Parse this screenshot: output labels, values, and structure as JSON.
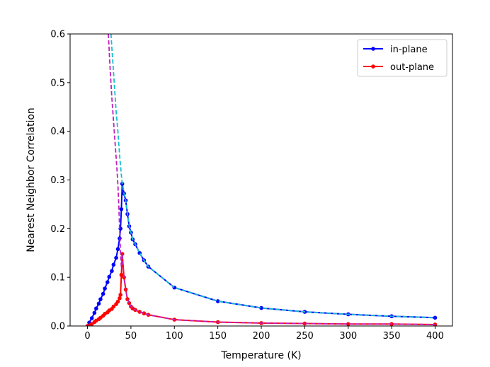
{
  "chart_data": {
    "type": "line",
    "xlabel": "Temperature (K)",
    "ylabel": "Nearest Neighbor Correlation",
    "xlim": [
      -20,
      420
    ],
    "ylim": [
      0,
      0.6
    ],
    "xticks": [
      0,
      50,
      100,
      150,
      200,
      250,
      300,
      350,
      400
    ],
    "yticks": [
      0.0,
      0.1,
      0.2,
      0.3,
      0.4,
      0.5,
      0.6
    ],
    "xtick_labels": [
      "0",
      "50",
      "100",
      "150",
      "200",
      "250",
      "300",
      "350",
      "400"
    ],
    "ytick_labels": [
      "0.0",
      "0.1",
      "0.2",
      "0.3",
      "0.4",
      "0.5",
      "0.6"
    ],
    "legend_position": "top-right",
    "grid": false,
    "series": [
      {
        "name": "in-plane",
        "color": "#0000ff",
        "marker": "circle",
        "line_style": "solid",
        "x": [
          0,
          2,
          5,
          8,
          10,
          13,
          15,
          18,
          20,
          23,
          25,
          28,
          30,
          33,
          35,
          37,
          38,
          39,
          40,
          42,
          44,
          46,
          48,
          50,
          52,
          55,
          60,
          65,
          70,
          100,
          150,
          200,
          250,
          300,
          350,
          400
        ],
        "y": [
          0.0,
          0.007,
          0.016,
          0.027,
          0.036,
          0.046,
          0.055,
          0.066,
          0.077,
          0.09,
          0.101,
          0.113,
          0.126,
          0.14,
          0.158,
          0.18,
          0.2,
          0.24,
          0.292,
          0.272,
          0.258,
          0.23,
          0.205,
          0.192,
          0.178,
          0.168,
          0.15,
          0.135,
          0.122,
          0.079,
          0.051,
          0.037,
          0.029,
          0.024,
          0.02,
          0.017
        ]
      },
      {
        "name": "out-plane",
        "color": "#ff0000",
        "marker": "circle",
        "line_style": "solid",
        "x": [
          0,
          3,
          5,
          8,
          10,
          13,
          15,
          18,
          20,
          23,
          25,
          28,
          30,
          33,
          35,
          37,
          38,
          39,
          40,
          42,
          44,
          46,
          48,
          50,
          52,
          55,
          60,
          65,
          70,
          100,
          150,
          200,
          250,
          300,
          350,
          400
        ],
        "y": [
          0.0,
          0.002,
          0.004,
          0.008,
          0.011,
          0.014,
          0.017,
          0.021,
          0.025,
          0.028,
          0.032,
          0.035,
          0.04,
          0.045,
          0.05,
          0.057,
          0.064,
          0.105,
          0.148,
          0.1,
          0.075,
          0.055,
          0.047,
          0.04,
          0.036,
          0.033,
          0.029,
          0.026,
          0.023,
          0.013,
          0.008,
          0.006,
          0.005,
          0.004,
          0.004,
          0.003
        ]
      },
      {
        "color": "#17becf",
        "marker": "none",
        "line_style": "dashed",
        "x": [
          27,
          30,
          33,
          35,
          37,
          38,
          39,
          40,
          42,
          44,
          46,
          48,
          50,
          52,
          55,
          60,
          65,
          70,
          100,
          150,
          200,
          250,
          300,
          350,
          400
        ],
        "y": [
          0.6,
          0.52,
          0.44,
          0.4,
          0.35,
          0.33,
          0.31,
          0.292,
          0.272,
          0.258,
          0.23,
          0.205,
          0.192,
          0.178,
          0.168,
          0.15,
          0.135,
          0.122,
          0.079,
          0.051,
          0.037,
          0.029,
          0.024,
          0.02,
          0.017
        ]
      },
      {
        "color": "#c020c0",
        "marker": "none",
        "line_style": "dashed",
        "x": [
          24,
          26,
          28,
          30,
          32,
          34,
          35,
          36,
          37,
          38,
          39,
          40,
          42,
          44,
          46,
          48,
          50,
          55,
          60,
          65,
          70,
          100,
          150,
          200,
          250,
          300,
          350,
          400
        ],
        "y": [
          0.6,
          0.53,
          0.47,
          0.42,
          0.37,
          0.32,
          0.29,
          0.25,
          0.2,
          0.15,
          0.12,
          0.148,
          0.1,
          0.075,
          0.055,
          0.047,
          0.04,
          0.033,
          0.029,
          0.026,
          0.023,
          0.013,
          0.008,
          0.006,
          0.005,
          0.004,
          0.004,
          0.003
        ]
      }
    ]
  }
}
